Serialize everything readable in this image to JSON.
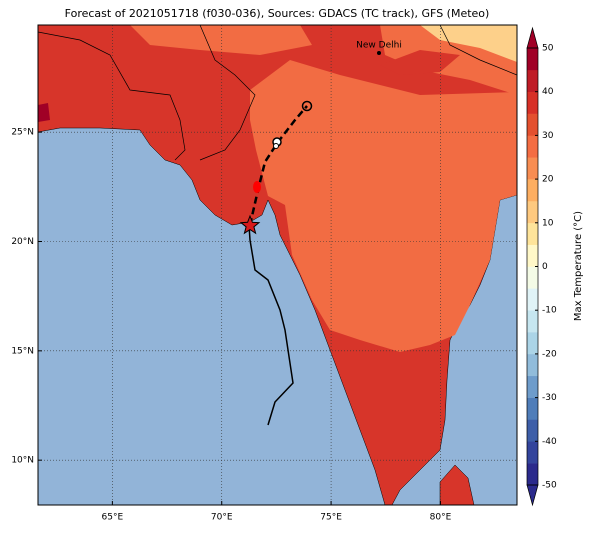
{
  "title": "Forecast of 2021051718 (f030-036), Sources: GDACS (TC track), GFS (Meteo)",
  "map": {
    "xlim": [
      61.6,
      83.5
    ],
    "ylim": [
      7.95,
      29.9
    ],
    "xticks": [
      {
        "value": 65,
        "label": "65°E"
      },
      {
        "value": 70,
        "label": "70°E"
      },
      {
        "value": 75,
        "label": "75°E"
      },
      {
        "value": 80,
        "label": "80°E"
      }
    ],
    "yticks": [
      {
        "value": 10,
        "label": "10°N"
      },
      {
        "value": 15,
        "label": "15°N"
      },
      {
        "value": 20,
        "label": "20°N"
      },
      {
        "value": 25,
        "label": "25°N"
      }
    ],
    "city": "New Delhi"
  },
  "colorbar": {
    "label": "Max Temperature (°C)",
    "lim": [
      -50,
      50
    ],
    "ticks": [
      -50,
      -40,
      -30,
      -20,
      -10,
      0,
      10,
      20,
      30,
      40,
      50
    ],
    "colors": [
      "#2b2a8c",
      "#33449c",
      "#3d5ea8",
      "#4f7db9",
      "#6e9ccb",
      "#91bcdb",
      "#abd4e7",
      "#c6e6f0",
      "#e0f3f7",
      "#f4fbe6",
      "#fff8c8",
      "#fee49a",
      "#fec97f",
      "#fdae61",
      "#f88d52",
      "#f46d43",
      "#e4502f",
      "#d73027",
      "#bf1c26",
      "#a00026"
    ]
  }
}
